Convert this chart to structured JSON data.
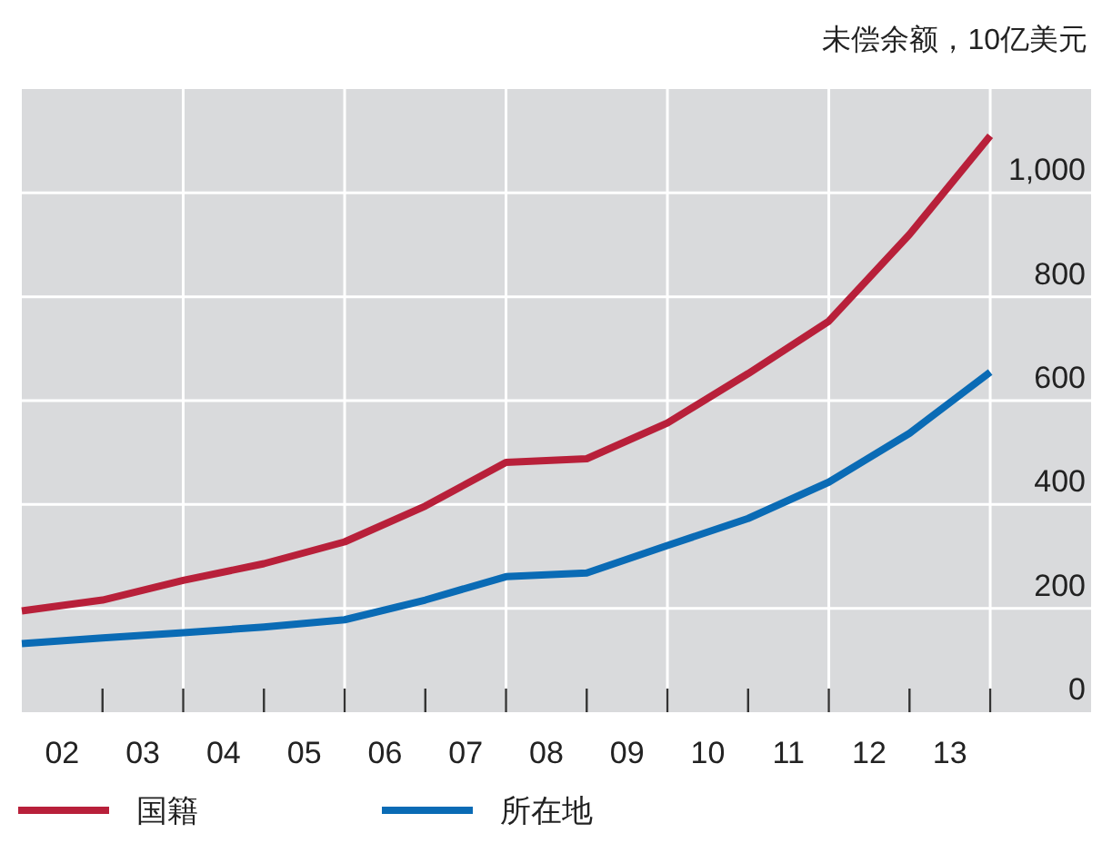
{
  "chart_data": {
    "type": "line",
    "ylabel": "未偿余额，10亿美元",
    "x": [
      "2002",
      "2003",
      "2004",
      "2005",
      "2006",
      "2007",
      "2008",
      "2009",
      "2010",
      "2011",
      "2012",
      "2013",
      "2014"
    ],
    "series": [
      {
        "name": "国籍",
        "color": "#b8203a",
        "values": [
          195,
          216,
          254,
          286,
          328,
          397,
          481,
          488,
          557,
          652,
          753,
          920,
          1110
        ]
      },
      {
        "name": "所在地",
        "color": "#0a6bb5",
        "values": [
          132,
          143,
          153,
          164,
          178,
          216,
          261,
          268,
          321,
          373,
          443,
          537,
          655
        ]
      }
    ],
    "xlim": [
      "2002",
      "2015-04"
    ],
    "ylim": [
      0,
      1200
    ],
    "xticks": [
      {
        "value": "2002-07",
        "label": "02"
      },
      {
        "value": "2003",
        "label": null
      },
      {
        "value": "2003-07",
        "label": "03"
      },
      {
        "value": "2004",
        "label": null
      },
      {
        "value": "2004-07",
        "label": "04"
      },
      {
        "value": "2005",
        "label": null
      },
      {
        "value": "2005-07",
        "label": "05"
      },
      {
        "value": "2006",
        "label": null
      },
      {
        "value": "2006-07",
        "label": "06"
      },
      {
        "value": "2007",
        "label": null
      },
      {
        "value": "2007-07",
        "label": "07"
      },
      {
        "value": "2008",
        "label": null
      },
      {
        "value": "2008-07",
        "label": "08"
      },
      {
        "value": "2009",
        "label": null
      },
      {
        "value": "2009-07",
        "label": "09"
      },
      {
        "value": "2010",
        "label": null
      },
      {
        "value": "2010-07",
        "label": "10"
      },
      {
        "value": "2011",
        "label": null
      },
      {
        "value": "2011-07",
        "label": "11"
      },
      {
        "value": "2012",
        "label": null
      },
      {
        "value": "2012-07",
        "label": "12"
      },
      {
        "value": "2013",
        "label": null
      },
      {
        "value": "2013-07",
        "label": "13"
      },
      {
        "value": "2014",
        "label": null
      }
    ],
    "yticks": [
      0,
      200,
      400,
      600,
      800,
      {
        "value": 1000,
        "label": "1,000"
      }
    ],
    "grid": true,
    "legend": "bottom",
    "line_style": "solid",
    "marker": "none"
  }
}
